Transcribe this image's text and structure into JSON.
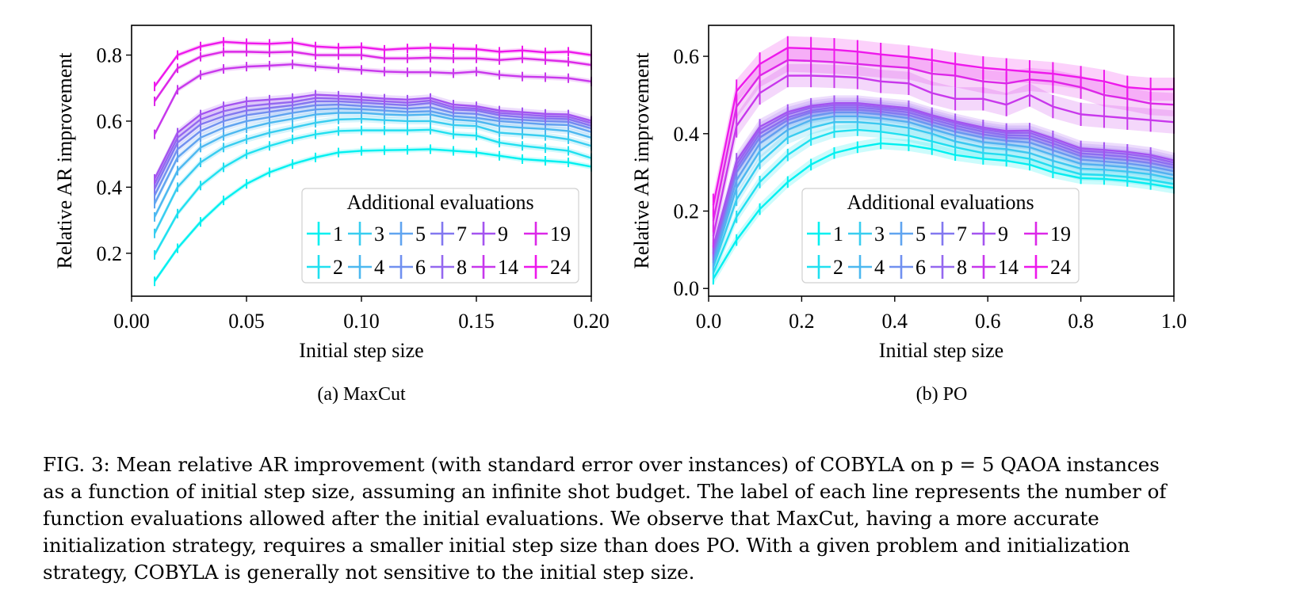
{
  "figure": {
    "subcaption_a": "(a) MaxCut",
    "subcaption_b": "(b) PO",
    "caption_lines": [
      "FIG. 3: Mean relative AR improvement (with standard error over instances) of COBYLA on p = 5 QAOA instances",
      "as a function of initial step size, assuming an infinite shot budget. The label of each line represents the number of",
      "function evaluations allowed after the initial evaluations. We observe that MaxCut, having a more accurate",
      "initialization strategy, requires a smaller initial step size than does PO. With a given problem and initialization",
      "strategy, COBYLA is generally not sensitive to the initial step size."
    ]
  },
  "chart_data": [
    {
      "type": "line",
      "panel": "MaxCut",
      "xlabel": "Initial step size",
      "ylabel": "Relative AR improvement",
      "xlim": [
        0.0,
        0.2
      ],
      "ylim": [
        0.07,
        0.89
      ],
      "xticks": [
        "0.00",
        "0.05",
        "0.10",
        "0.15",
        "0.20"
      ],
      "xtick_values": [
        0.0,
        0.05,
        0.1,
        0.15,
        0.2
      ],
      "yticks": [
        "0.2",
        "0.4",
        "0.6",
        "0.8"
      ],
      "ytick_values": [
        0.2,
        0.4,
        0.6,
        0.8
      ],
      "grid": false,
      "legend": {
        "title": "Additional evaluations",
        "placement": "lower-right"
      },
      "x": [
        0.01,
        0.02,
        0.03,
        0.04,
        0.05,
        0.06,
        0.07,
        0.08,
        0.09,
        0.1,
        0.11,
        0.12,
        0.13,
        0.14,
        0.15,
        0.16,
        0.17,
        0.18,
        0.19,
        0.2
      ],
      "series": [
        {
          "name": "1",
          "color": "#00f0f0",
          "error": 0.008,
          "values": [
            0.115,
            0.215,
            0.295,
            0.36,
            0.41,
            0.445,
            0.47,
            0.49,
            0.505,
            0.51,
            0.512,
            0.513,
            0.515,
            0.51,
            0.505,
            0.495,
            0.485,
            0.48,
            0.475,
            0.462
          ]
        },
        {
          "name": "2",
          "color": "#20e0f0",
          "error": 0.009,
          "values": [
            0.195,
            0.32,
            0.405,
            0.46,
            0.5,
            0.525,
            0.545,
            0.56,
            0.57,
            0.572,
            0.572,
            0.572,
            0.574,
            0.56,
            0.556,
            0.535,
            0.525,
            0.518,
            0.51,
            0.488
          ]
        },
        {
          "name": "3",
          "color": "#38cdf0",
          "error": 0.01,
          "values": [
            0.26,
            0.4,
            0.475,
            0.52,
            0.545,
            0.565,
            0.58,
            0.595,
            0.605,
            0.607,
            0.603,
            0.6,
            0.6,
            0.588,
            0.585,
            0.565,
            0.56,
            0.555,
            0.545,
            0.525
          ]
        },
        {
          "name": "4",
          "color": "#4cb8f0",
          "error": 0.01,
          "values": [
            0.31,
            0.45,
            0.52,
            0.555,
            0.578,
            0.595,
            0.607,
            0.62,
            0.625,
            0.625,
            0.62,
            0.618,
            0.62,
            0.605,
            0.6,
            0.585,
            0.58,
            0.576,
            0.57,
            0.55
          ]
        },
        {
          "name": "5",
          "color": "#60a4f0",
          "error": 0.011,
          "values": [
            0.35,
            0.49,
            0.55,
            0.58,
            0.6,
            0.612,
            0.625,
            0.635,
            0.638,
            0.636,
            0.632,
            0.628,
            0.63,
            0.615,
            0.61,
            0.6,
            0.595,
            0.59,
            0.588,
            0.567
          ]
        },
        {
          "name": "6",
          "color": "#7090f0",
          "error": 0.011,
          "values": [
            0.375,
            0.515,
            0.57,
            0.6,
            0.618,
            0.628,
            0.638,
            0.648,
            0.65,
            0.646,
            0.642,
            0.638,
            0.642,
            0.625,
            0.622,
            0.608,
            0.604,
            0.6,
            0.598,
            0.578
          ]
        },
        {
          "name": "7",
          "color": "#8278f0",
          "error": 0.011,
          "values": [
            0.395,
            0.535,
            0.59,
            0.615,
            0.632,
            0.64,
            0.648,
            0.66,
            0.66,
            0.656,
            0.652,
            0.648,
            0.655,
            0.635,
            0.632,
            0.618,
            0.612,
            0.608,
            0.606,
            0.586
          ]
        },
        {
          "name": "8",
          "color": "#9468f0",
          "error": 0.011,
          "values": [
            0.41,
            0.55,
            0.605,
            0.63,
            0.645,
            0.652,
            0.658,
            0.67,
            0.668,
            0.664,
            0.66,
            0.656,
            0.662,
            0.642,
            0.638,
            0.625,
            0.62,
            0.615,
            0.613,
            0.594
          ]
        },
        {
          "name": "9",
          "color": "#a454f0",
          "error": 0.011,
          "values": [
            0.425,
            0.565,
            0.62,
            0.645,
            0.66,
            0.665,
            0.67,
            0.68,
            0.677,
            0.673,
            0.668,
            0.665,
            0.67,
            0.65,
            0.645,
            0.632,
            0.627,
            0.622,
            0.62,
            0.601
          ]
        },
        {
          "name": "14",
          "color": "#c838ec",
          "error": 0.008,
          "values": [
            0.56,
            0.695,
            0.74,
            0.758,
            0.765,
            0.768,
            0.772,
            0.765,
            0.76,
            0.755,
            0.75,
            0.748,
            0.748,
            0.745,
            0.75,
            0.74,
            0.735,
            0.733,
            0.73,
            0.72
          ]
        },
        {
          "name": "19",
          "color": "#dc28e8",
          "error": 0.007,
          "values": [
            0.66,
            0.76,
            0.795,
            0.81,
            0.81,
            0.808,
            0.81,
            0.8,
            0.8,
            0.8,
            0.79,
            0.79,
            0.792,
            0.79,
            0.79,
            0.785,
            0.79,
            0.785,
            0.78,
            0.77
          ]
        },
        {
          "name": "24",
          "color": "#ee18ec",
          "error": 0.007,
          "values": [
            0.705,
            0.8,
            0.826,
            0.84,
            0.836,
            0.834,
            0.838,
            0.826,
            0.822,
            0.824,
            0.816,
            0.82,
            0.822,
            0.82,
            0.818,
            0.81,
            0.814,
            0.808,
            0.81,
            0.8
          ]
        }
      ]
    },
    {
      "type": "line",
      "panel": "PO",
      "xlabel": "Initial step size",
      "ylabel": "Relative AR improvement",
      "xlim": [
        0.0,
        1.0
      ],
      "ylim": [
        -0.02,
        0.68
      ],
      "xticks": [
        "0.0",
        "0.2",
        "0.4",
        "0.6",
        "0.8",
        "1.0"
      ],
      "xtick_values": [
        0.0,
        0.2,
        0.4,
        0.6,
        0.8,
        1.0
      ],
      "yticks": [
        "0.0",
        "0.2",
        "0.4",
        "0.6"
      ],
      "ytick_values": [
        0.0,
        0.2,
        0.4,
        0.6
      ],
      "grid": false,
      "legend": {
        "title": "Additional evaluations",
        "placement": "lower-center"
      },
      "x": [
        0.01,
        0.06,
        0.11,
        0.17,
        0.22,
        0.27,
        0.32,
        0.37,
        0.43,
        0.48,
        0.53,
        0.59,
        0.64,
        0.69,
        0.74,
        0.8,
        0.85,
        0.9,
        0.95,
        1.0
      ],
      "series": [
        {
          "name": "1",
          "color": "#00f0f0",
          "error": 0.015,
          "values": [
            0.025,
            0.125,
            0.205,
            0.275,
            0.32,
            0.35,
            0.365,
            0.375,
            0.37,
            0.36,
            0.345,
            0.335,
            0.33,
            0.32,
            0.3,
            0.285,
            0.283,
            0.278,
            0.27,
            0.26
          ]
        },
        {
          "name": "2",
          "color": "#20e0f0",
          "error": 0.016,
          "values": [
            0.04,
            0.185,
            0.275,
            0.345,
            0.385,
            0.405,
            0.41,
            0.405,
            0.395,
            0.38,
            0.365,
            0.35,
            0.345,
            0.335,
            0.315,
            0.295,
            0.293,
            0.288,
            0.28,
            0.27
          ]
        },
        {
          "name": "3",
          "color": "#38cdf0",
          "error": 0.017,
          "values": [
            0.055,
            0.23,
            0.325,
            0.39,
            0.415,
            0.43,
            0.43,
            0.425,
            0.415,
            0.4,
            0.38,
            0.365,
            0.36,
            0.35,
            0.33,
            0.31,
            0.307,
            0.302,
            0.295,
            0.283
          ]
        },
        {
          "name": "4",
          "color": "#4cb8f0",
          "error": 0.018,
          "values": [
            0.065,
            0.26,
            0.355,
            0.41,
            0.435,
            0.445,
            0.445,
            0.44,
            0.43,
            0.412,
            0.395,
            0.378,
            0.372,
            0.365,
            0.345,
            0.322,
            0.318,
            0.313,
            0.305,
            0.293
          ]
        },
        {
          "name": "5",
          "color": "#60a4f0",
          "error": 0.018,
          "values": [
            0.075,
            0.28,
            0.375,
            0.425,
            0.445,
            0.455,
            0.455,
            0.45,
            0.44,
            0.422,
            0.405,
            0.39,
            0.382,
            0.377,
            0.357,
            0.333,
            0.328,
            0.323,
            0.315,
            0.303
          ]
        },
        {
          "name": "6",
          "color": "#7090f0",
          "error": 0.019,
          "values": [
            0.085,
            0.3,
            0.39,
            0.435,
            0.455,
            0.462,
            0.462,
            0.457,
            0.448,
            0.43,
            0.414,
            0.398,
            0.39,
            0.387,
            0.367,
            0.342,
            0.337,
            0.332,
            0.324,
            0.312
          ]
        },
        {
          "name": "7",
          "color": "#8278f0",
          "error": 0.019,
          "values": [
            0.092,
            0.31,
            0.4,
            0.442,
            0.46,
            0.468,
            0.468,
            0.463,
            0.455,
            0.437,
            0.421,
            0.405,
            0.396,
            0.395,
            0.375,
            0.349,
            0.345,
            0.34,
            0.332,
            0.319
          ]
        },
        {
          "name": "8",
          "color": "#9468f0",
          "error": 0.019,
          "values": [
            0.1,
            0.32,
            0.41,
            0.45,
            0.467,
            0.474,
            0.474,
            0.468,
            0.461,
            0.443,
            0.427,
            0.411,
            0.402,
            0.402,
            0.382,
            0.356,
            0.352,
            0.347,
            0.339,
            0.325
          ]
        },
        {
          "name": "9",
          "color": "#a454f0",
          "error": 0.02,
          "values": [
            0.108,
            0.33,
            0.418,
            0.456,
            0.472,
            0.479,
            0.479,
            0.473,
            0.466,
            0.448,
            0.432,
            0.416,
            0.407,
            0.408,
            0.388,
            0.362,
            0.358,
            0.353,
            0.345,
            0.331
          ]
        },
        {
          "name": "14",
          "color": "#c838ec",
          "error": 0.03,
          "values": [
            0.135,
            0.42,
            0.505,
            0.55,
            0.55,
            0.548,
            0.545,
            0.535,
            0.53,
            0.505,
            0.49,
            0.49,
            0.475,
            0.5,
            0.47,
            0.45,
            0.445,
            0.44,
            0.435,
            0.43
          ]
        },
        {
          "name": "19",
          "color": "#dc28e8",
          "error": 0.03,
          "values": [
            0.175,
            0.47,
            0.55,
            0.59,
            0.588,
            0.585,
            0.58,
            0.575,
            0.57,
            0.555,
            0.55,
            0.535,
            0.53,
            0.54,
            0.535,
            0.52,
            0.5,
            0.49,
            0.478,
            0.475
          ]
        },
        {
          "name": "24",
          "color": "#ee18ec",
          "error": 0.03,
          "values": [
            0.215,
            0.51,
            0.58,
            0.622,
            0.62,
            0.617,
            0.612,
            0.605,
            0.598,
            0.59,
            0.58,
            0.57,
            0.565,
            0.56,
            0.555,
            0.545,
            0.535,
            0.52,
            0.515,
            0.515
          ]
        }
      ]
    }
  ]
}
